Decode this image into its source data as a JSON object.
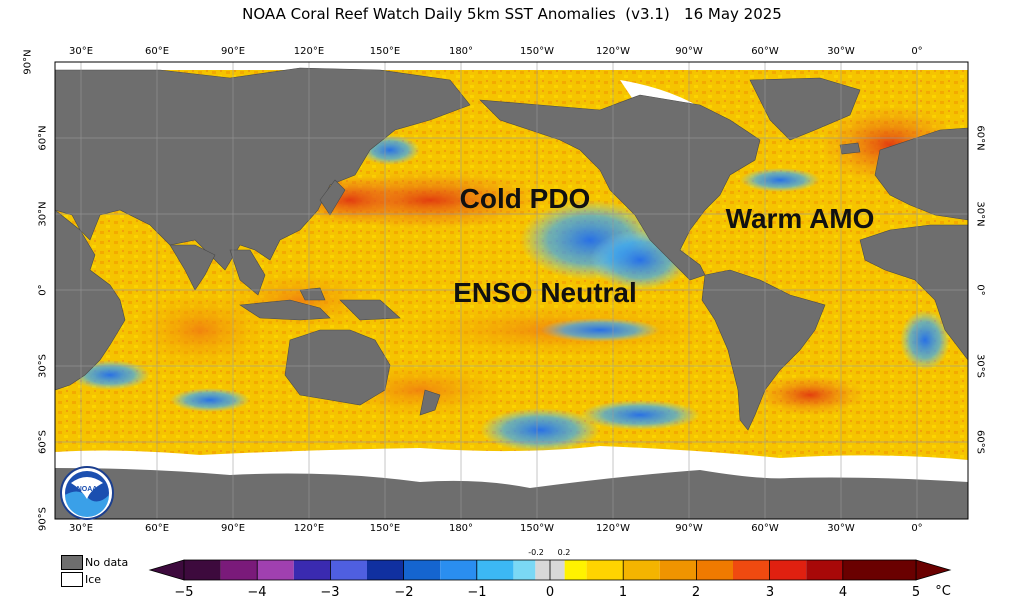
{
  "title": "NOAA Coral Reef Watch Daily 5km SST Anomalies  (v3.1)   16 May 2025",
  "lon_labels": [
    "30°E",
    "60°E",
    "90°E",
    "120°E",
    "150°E",
    "180°",
    "150°W",
    "120°W",
    "90°W",
    "60°W",
    "30°W",
    "0°"
  ],
  "lat_labels": [
    "90°N",
    "60°N",
    "30°N",
    "0°",
    "30°S",
    "60°S",
    "90°S"
  ],
  "lat_labels_right": [
    "60°N",
    "30°N",
    "0°",
    "30°S",
    "60°S"
  ],
  "annotations": {
    "pdo": "Cold PDO",
    "amo": "Warm AMO",
    "enso": "ENSO Neutral"
  },
  "legend": {
    "no_data": "No data",
    "ice": "Ice",
    "no_data_color": "#6e6e6e",
    "ice_color": "#ffffff"
  },
  "colorbar": {
    "ticks": [
      "−5",
      "−4",
      "−3",
      "−2",
      "−1",
      "0",
      "1",
      "2",
      "3",
      "4",
      "5"
    ],
    "small_ticks": [
      "-0.2",
      "0.2"
    ],
    "unit": "°C",
    "colors": [
      "#3d0a3d",
      "#7a1a7a",
      "#a040b0",
      "#3a2ab0",
      "#4f5fe0",
      "#1030a0",
      "#1565d0",
      "#2a8ef0",
      "#3cb8f5",
      "#7ad8f5",
      "#d8d8d8",
      "#fff200",
      "#ffd400",
      "#f5b400",
      "#f09400",
      "#f07a00",
      "#f04a10",
      "#e02010",
      "#a80808",
      "#6a0000"
    ]
  },
  "colors": {
    "land": "#6e6e6e",
    "ocean_warm": "#f5c000",
    "ocean_hot": "#f08020",
    "ocean_cold": "#3a90ff"
  }
}
